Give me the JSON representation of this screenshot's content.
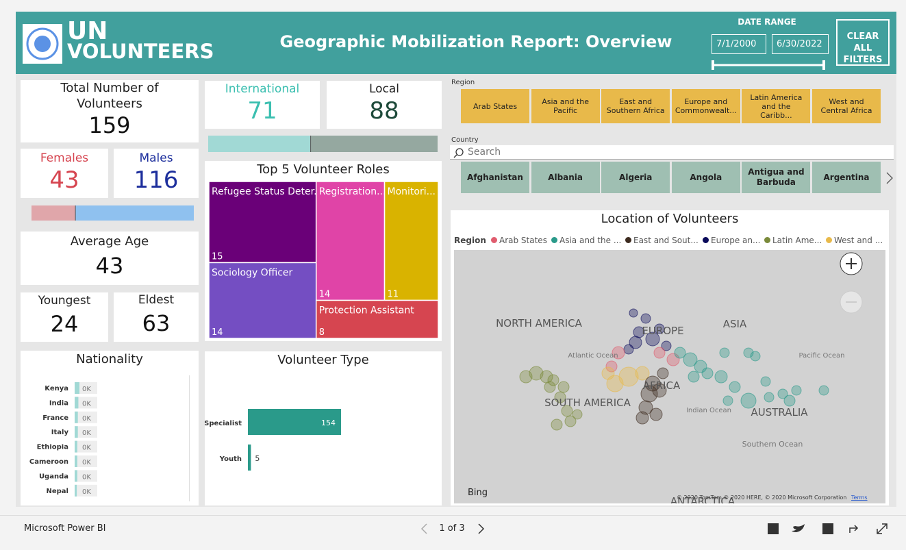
{
  "header": {
    "logo_line1": "UN",
    "logo_line2": "VOLUNTEERS",
    "title": "Geographic Mobilization Report: Overview",
    "date_range_label": "DATE RANGE",
    "start_date": "7/1/2000",
    "end_date": "6/30/2022",
    "clear_button": "CLEAR ALL FILTERS"
  },
  "kpis": {
    "total": {
      "label": "Total Number of Volunteers",
      "value": 159
    },
    "females": {
      "label": "Females",
      "value": 43,
      "color": "#d64550",
      "bar_color": "#e0a6aa"
    },
    "males": {
      "label": "Males",
      "value": 116,
      "color": "#1c2e9c",
      "bar_color": "#8fc1ef"
    },
    "average_age": {
      "label": "Average Age",
      "value": 43
    },
    "youngest": {
      "label": "Youngest",
      "value": 24
    },
    "eldest": {
      "label": "Eldest",
      "value": 63
    },
    "international": {
      "label": "International",
      "value": 71,
      "color": "#3bbfb0",
      "bar_color": "#a1d9d5"
    },
    "local": {
      "label": "Local",
      "value": 88,
      "color": "#1e4a3a",
      "bar_color": "#95a8a0"
    }
  },
  "treemap": {
    "type": "treemap",
    "title": "Top 5 Volunteer Roles",
    "categories": [
      "Refugee Status Deter...",
      "Registration...",
      "Sociology Officer",
      "Monitori...",
      "Protection Assistant"
    ],
    "values": [
      15,
      14,
      14,
      11,
      8
    ],
    "colors": [
      "#6a0078",
      "#e044a7",
      "#744ec2",
      "#d9b300",
      "#d64550"
    ]
  },
  "nationality": {
    "type": "bar",
    "title": "Nationality",
    "categories": [
      "Kenya",
      "India",
      "France",
      "Italy",
      "Ethiopia",
      "Cameroon",
      "Uganda",
      "Nepal"
    ],
    "values": [
      9,
      7,
      6,
      6,
      5,
      5,
      5,
      4
    ],
    "value_labels": [
      "0K",
      "0K",
      "0K",
      "0K",
      "0K",
      "0K",
      "0K",
      "0K"
    ],
    "color": "#a1d9d5"
  },
  "volunteer_type": {
    "type": "bar",
    "title": "Volunteer Type",
    "categories": [
      "Specialist",
      "Youth"
    ],
    "values": [
      154,
      5
    ],
    "color": "#2a9a8a"
  },
  "slicers": {
    "region": {
      "label": "Region",
      "items": [
        "Arab States",
        "Asia and the Pacific",
        "East and Southern Africa",
        "Europe and Commonwealt...",
        "Latin America and the Caribb...",
        "West and Central Africa"
      ]
    },
    "country": {
      "label": "Country",
      "search": "Search",
      "items": [
        "Afghanistan",
        "Albania",
        "Algeria",
        "Angola",
        "Antigua and Barbuda",
        "Argentina"
      ]
    }
  },
  "map": {
    "title": "Location of Volunteers",
    "legend": {
      "title": "Region",
      "items": [
        {
          "name": "Arab States",
          "color": "#e05c6e"
        },
        {
          "name": "Asia and the ...",
          "color": "#2a9a8a"
        },
        {
          "name": "East and Sout...",
          "color": "#3d2b1f"
        },
        {
          "name": "Europe an...",
          "color": "#0a0a5a"
        },
        {
          "name": "Latin Ame...",
          "color": "#7a8a3a"
        },
        {
          "name": "West and ...",
          "color": "#e8b94a"
        }
      ]
    },
    "labels": [
      "NORTH AMERICA",
      "EUROPE",
      "ASIA",
      "Atlantic Ocean",
      "Pacific Ocean",
      "AFRICA",
      "SOUTH AMERICA",
      "Indian Ocean",
      "AUSTRALIA",
      "Southern Ocean",
      "ANTARCTICA"
    ],
    "provider": "Bing",
    "copyright": "© 2020 TomTom © 2020 HERE, © 2020 Microsoft Corporation",
    "terms": "Terms"
  },
  "footer": {
    "brand": "Microsoft Power BI",
    "page": "1 of 3"
  }
}
